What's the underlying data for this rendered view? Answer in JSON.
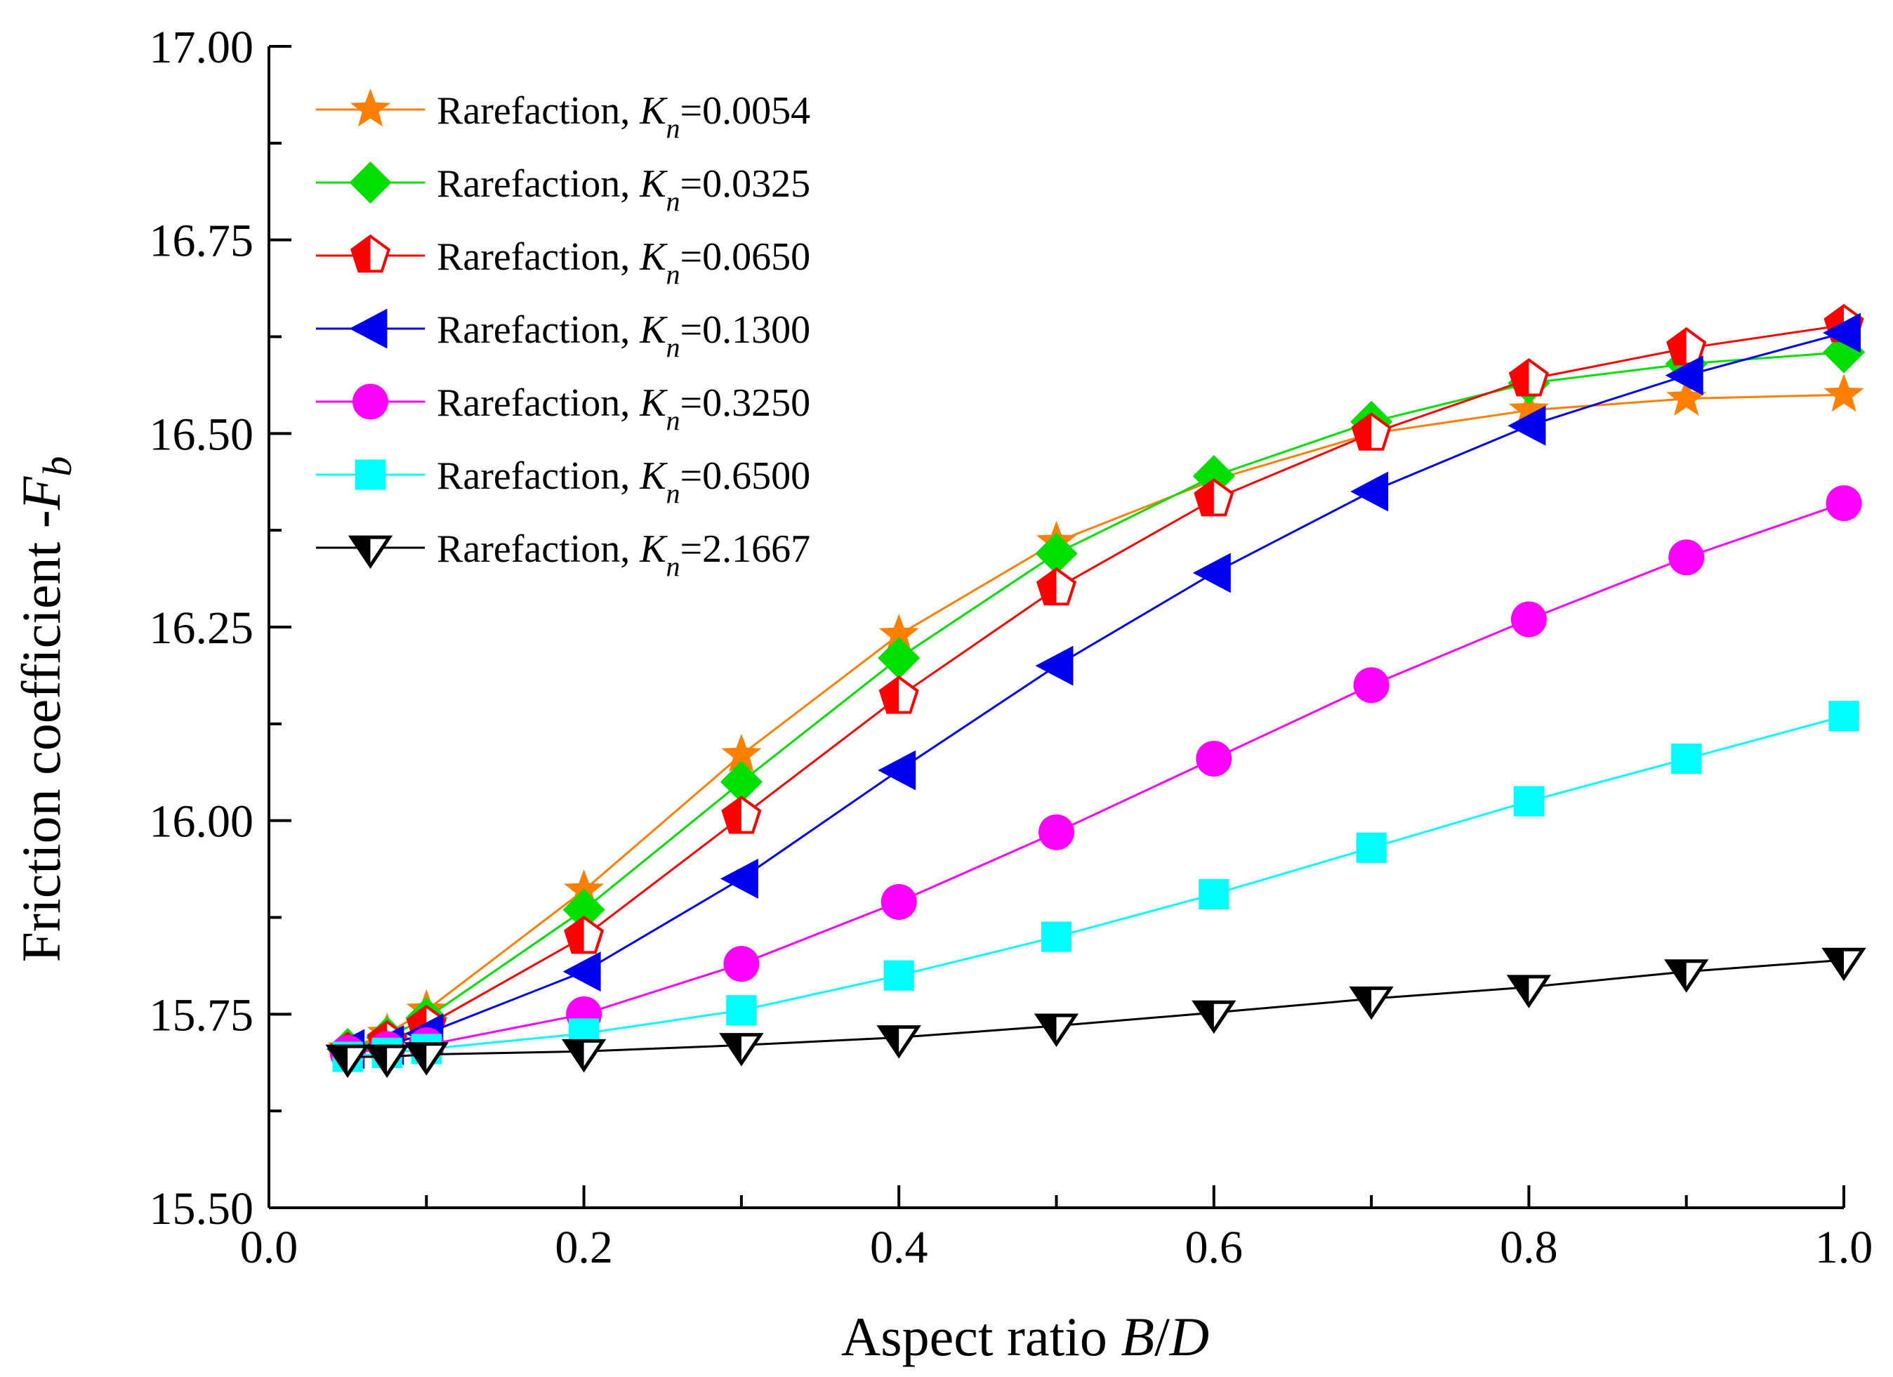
{
  "chart_data": {
    "type": "line",
    "xlabel": {
      "prefix": "Aspect ratio ",
      "var": "B",
      "slash": "/",
      "var2": "D"
    },
    "ylabel": {
      "prefix": "Friction coefficient -",
      "var": "F",
      "sub": "b"
    },
    "xlim": [
      0.0,
      1.0
    ],
    "ylim": [
      15.5,
      17.0
    ],
    "xticks": [
      0.0,
      0.2,
      0.4,
      0.6,
      0.8,
      1.0
    ],
    "xtick_labels": [
      "0.0",
      "0.2",
      "0.4",
      "0.6",
      "0.8",
      "1.0"
    ],
    "yticks": [
      15.5,
      15.75,
      16.0,
      16.25,
      16.5,
      16.75,
      17.0
    ],
    "ytick_labels": [
      "15.50",
      "15.75",
      "16.00",
      "16.25",
      "16.50",
      "16.75",
      "17.00"
    ],
    "legend_position": "top-left",
    "x": [
      0.05,
      0.075,
      0.1,
      0.2,
      0.3,
      0.4,
      0.5,
      0.6,
      0.7,
      0.8,
      0.9,
      1.0
    ],
    "series": [
      {
        "label_prefix": "Rarefaction, ",
        "var": "K",
        "sub": "n",
        "label_value": "=0.0054",
        "color": "#FF8000",
        "marker": "star",
        "values": [
          15.705,
          15.725,
          15.755,
          15.91,
          16.085,
          16.24,
          16.36,
          16.44,
          16.5,
          16.53,
          16.545,
          16.55
        ]
      },
      {
        "label_prefix": "Rarefaction, ",
        "var": "K",
        "sub": "n",
        "label_value": "=0.0325",
        "color": "#00E000",
        "marker": "diamond",
        "values": [
          15.705,
          15.72,
          15.745,
          15.885,
          16.05,
          16.21,
          16.345,
          16.445,
          16.515,
          16.565,
          16.59,
          16.605
        ]
      },
      {
        "label_prefix": "Rarefaction, ",
        "var": "K",
        "sub": "n",
        "label_value": "=0.0650",
        "color": "#FF0000",
        "marker": "pentagon",
        "values": [
          15.7,
          15.715,
          15.735,
          15.85,
          16.005,
          16.16,
          16.3,
          16.415,
          16.5,
          16.57,
          16.61,
          16.64
        ]
      },
      {
        "label_prefix": "Rarefaction, ",
        "var": "K",
        "sub": "n",
        "label_value": "=0.1300",
        "color": "#0000EE",
        "marker": "triangle-left",
        "values": [
          15.705,
          15.71,
          15.725,
          15.805,
          15.925,
          16.065,
          16.2,
          16.32,
          16.425,
          16.51,
          16.575,
          16.63
        ]
      },
      {
        "label_prefix": "Rarefaction, ",
        "var": "K",
        "sub": "n",
        "label_value": "=0.3250",
        "color": "#FF00FF",
        "marker": "circle",
        "values": [
          15.7,
          15.705,
          15.71,
          15.75,
          15.815,
          15.895,
          15.985,
          16.08,
          16.175,
          16.26,
          16.34,
          16.41
        ]
      },
      {
        "label_prefix": "Rarefaction, ",
        "var": "K",
        "sub": "n",
        "label_value": "=0.6500",
        "color": "#00FFFF",
        "marker": "square",
        "values": [
          15.695,
          15.7,
          15.705,
          15.725,
          15.755,
          15.8,
          15.85,
          15.905,
          15.965,
          16.025,
          16.08,
          16.135
        ]
      },
      {
        "label_prefix": "Rarefaction, ",
        "var": "K",
        "sub": "n",
        "label_value": "=2.1667",
        "color": "#000000",
        "marker": "triangle-down",
        "values": [
          15.695,
          15.695,
          15.698,
          15.702,
          15.71,
          15.72,
          15.735,
          15.752,
          15.77,
          15.785,
          15.805,
          15.82
        ]
      }
    ]
  }
}
